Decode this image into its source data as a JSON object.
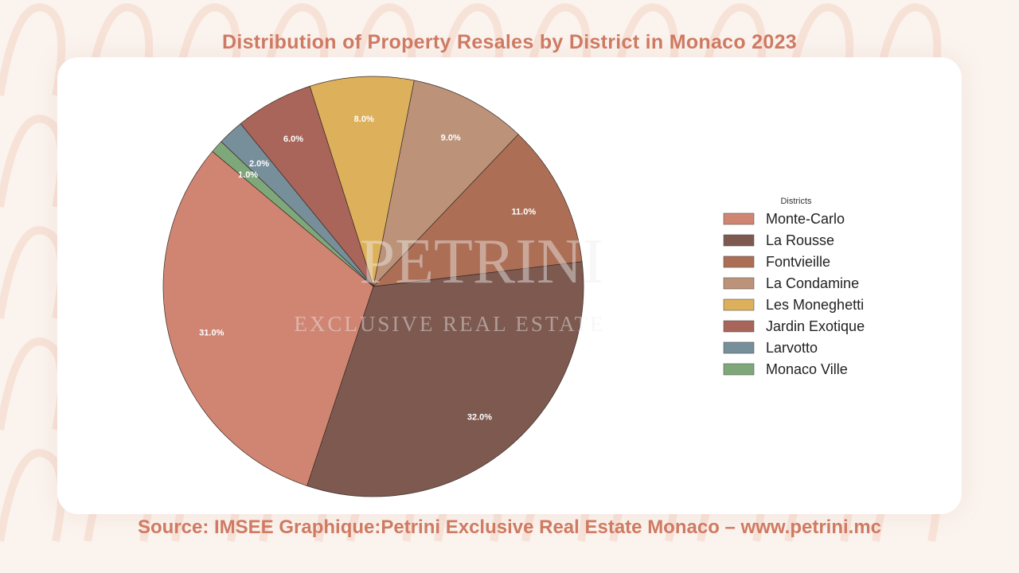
{
  "title": "Distribution of Property Resales by District in Monaco 2023",
  "source": "Source: IMSEE Graphique:Petrini Exclusive Real Estate Monaco – www.petrini.mc",
  "watermark": {
    "logo_text": "PETRINI",
    "tagline": "EXCLUSIVE REAL ESTATE"
  },
  "chart_data": {
    "type": "pie",
    "title": "",
    "legend_title": "Districts",
    "legend_placement": "right",
    "start_angle_deg": 140,
    "direction": "counterclockwise",
    "categories": [
      "Monte-Carlo",
      "La Rousse",
      "Fontvieille",
      "La Condamine",
      "Les Moneghetti",
      "Jardin Exotique",
      "Larvotto",
      "Monaco Ville"
    ],
    "values": [
      31.0,
      32.0,
      11.0,
      9.0,
      8.0,
      6.0,
      2.0,
      1.0
    ],
    "labels": [
      "31.0%",
      "32.0%",
      "11.0%",
      "9.0%",
      "8.0%",
      "6.0%",
      "2.0%",
      "1.0%"
    ],
    "colors": [
      "#d08573",
      "#7d5950",
      "#ac6f56",
      "#bc9379",
      "#ddb05b",
      "#a9655a",
      "#778f9b",
      "#7ea879"
    ]
  }
}
